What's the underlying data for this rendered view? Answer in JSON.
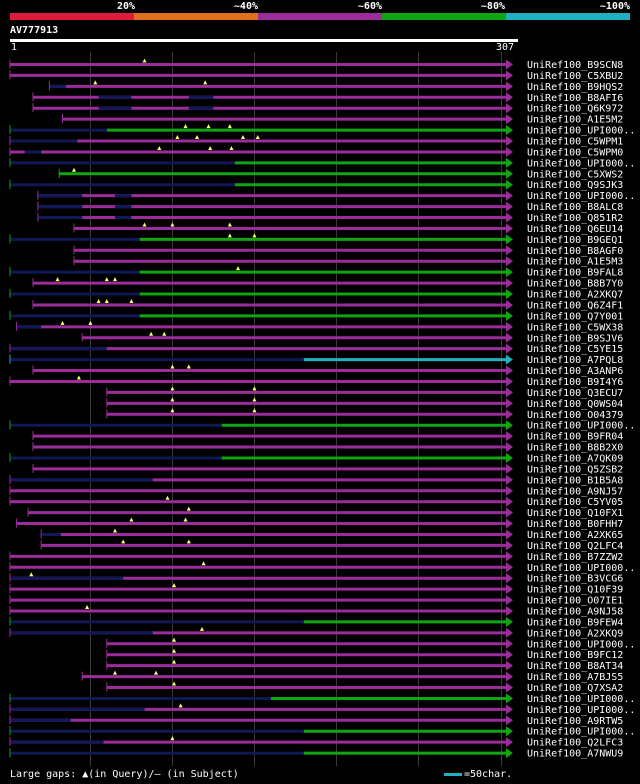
{
  "colors": {
    "magenta": "#9b2d9b",
    "green": "#11a511",
    "cyan": "#20b0c0",
    "navy": "#101858",
    "red": "#e01a3b",
    "orange": "#e07020",
    "grid": "#3a3a3a",
    "marker": "#ffff66"
  },
  "legend": {
    "bands": [
      {
        "label": "20%",
        "color": "#e01a3b"
      },
      {
        "label": "~40%",
        "color": "#e07020"
      },
      {
        "label": "~60%",
        "color": "#9b2d9b"
      },
      {
        "label": "~80%",
        "color": "#11a511"
      },
      {
        "label": "~100%",
        "color": "#20b0c0"
      }
    ]
  },
  "query": {
    "id": "AV777913",
    "start": "1",
    "end": "307",
    "length": 307
  },
  "hits": [
    {
      "name": "UniRef100_B9SCN8",
      "s": 1,
      "e": 307,
      "c": "magenta",
      "tri": [
        83
      ],
      "dash": []
    },
    {
      "name": "UniRef100_C5XBU2",
      "s": 1,
      "e": 307,
      "c": "magenta",
      "tri": [],
      "dash": []
    },
    {
      "name": "UniRef100_B9HQS2",
      "s": 25,
      "e": 307,
      "c": "magenta",
      "tri": [
        53,
        120
      ],
      "dash": [
        [
          25,
          35
        ]
      ]
    },
    {
      "name": "UniRef100_B8AFI6",
      "s": 15,
      "e": 307,
      "c": "magenta",
      "tri": [],
      "dash": [
        [
          55,
          75
        ],
        [
          110,
          125
        ]
      ]
    },
    {
      "name": "UniRef100_Q6K972",
      "s": 15,
      "e": 307,
      "c": "magenta",
      "tri": [],
      "dash": [
        [
          55,
          75
        ],
        [
          110,
          125
        ]
      ]
    },
    {
      "name": "UniRef100_A1E5M2",
      "s": 33,
      "e": 307,
      "c": "magenta",
      "tri": [],
      "dash": []
    },
    {
      "name": "UniRef100_UPI000..",
      "s": 1,
      "e": 307,
      "c": "green",
      "tri": [
        108,
        122,
        135
      ],
      "dash": [
        [
          1,
          60
        ]
      ],
      "split": 60
    },
    {
      "name": "UniRef100_C5WPM1",
      "s": 1,
      "e": 307,
      "c": "magenta",
      "tri": [
        103,
        115,
        143,
        152
      ],
      "dash": [
        [
          1,
          42
        ]
      ]
    },
    {
      "name": "UniRef100_C5WPM0",
      "s": 1,
      "e": 307,
      "c": "magenta",
      "tri": [
        123,
        136,
        92
      ],
      "dash": [
        [
          10,
          20
        ]
      ]
    },
    {
      "name": "UniRef100_UPI000..",
      "s": 1,
      "e": 307,
      "c": "green",
      "tri": [],
      "dash": [
        [
          1,
          138
        ]
      ],
      "split": 138
    },
    {
      "name": "UniRef100_C5XWS2",
      "s": 31,
      "e": 307,
      "c": "green",
      "tri": [
        40
      ],
      "dash": []
    },
    {
      "name": "UniRef100_Q9SJK3",
      "s": 1,
      "e": 307,
      "c": "green",
      "tri": [],
      "dash": [
        [
          1,
          138
        ]
      ],
      "split": 138
    },
    {
      "name": "UniRef100_UPI000..",
      "s": 18,
      "e": 307,
      "c": "magenta",
      "tri": [],
      "dash": [
        [
          18,
          45
        ],
        [
          65,
          75
        ]
      ]
    },
    {
      "name": "UniRef100_B8ALC8",
      "s": 18,
      "e": 307,
      "c": "magenta",
      "tri": [],
      "dash": [
        [
          18,
          45
        ],
        [
          65,
          75
        ]
      ]
    },
    {
      "name": "UniRef100_Q851R2",
      "s": 18,
      "e": 307,
      "c": "magenta",
      "tri": [],
      "dash": [
        [
          18,
          45
        ],
        [
          65,
          75
        ]
      ]
    },
    {
      "name": "UniRef100_Q6EU14",
      "s": 40,
      "e": 307,
      "c": "magenta",
      "tri": [
        83,
        100,
        135
      ],
      "dash": []
    },
    {
      "name": "UniRef100_B9GEQ1",
      "s": 1,
      "e": 307,
      "c": "green",
      "tri": [
        135,
        150
      ],
      "dash": [
        [
          1,
          80
        ]
      ],
      "split": 80
    },
    {
      "name": "UniRef100_B8AGF0",
      "s": 40,
      "e": 307,
      "c": "magenta",
      "tri": [],
      "dash": []
    },
    {
      "name": "UniRef100_A1E5M3",
      "s": 40,
      "e": 307,
      "c": "magenta",
      "tri": [],
      "dash": []
    },
    {
      "name": "UniRef100_B9FAL8",
      "s": 1,
      "e": 307,
      "c": "green",
      "tri": [
        140
      ],
      "dash": [
        [
          1,
          80
        ]
      ],
      "split": 80
    },
    {
      "name": "UniRef100_B8B7Y0",
      "s": 15,
      "e": 307,
      "c": "magenta",
      "tri": [
        30,
        60,
        65
      ],
      "dash": []
    },
    {
      "name": "UniRef100_A2XKQ7",
      "s": 1,
      "e": 307,
      "c": "green",
      "tri": [],
      "dash": [
        [
          1,
          80
        ]
      ],
      "split": 80
    },
    {
      "name": "UniRef100_Q6Z4F1",
      "s": 15,
      "e": 307,
      "c": "magenta",
      "tri": [
        55,
        75,
        60
      ],
      "dash": []
    },
    {
      "name": "UniRef100_Q7Y001",
      "s": 1,
      "e": 307,
      "c": "green",
      "tri": [],
      "dash": [
        [
          1,
          80
        ]
      ],
      "split": 80
    },
    {
      "name": "UniRef100_C5WX38",
      "s": 5,
      "e": 307,
      "c": "magenta",
      "tri": [
        33,
        50
      ],
      "dash": [
        [
          5,
          20
        ]
      ]
    },
    {
      "name": "UniRef100_B9SJV6",
      "s": 45,
      "e": 307,
      "c": "magenta",
      "tri": [
        87,
        95
      ],
      "dash": []
    },
    {
      "name": "UniRef100_C5YE15",
      "s": 1,
      "e": 307,
      "c": "magenta",
      "tri": [],
      "dash": [
        [
          1,
          60
        ]
      ]
    },
    {
      "name": "UniRef100_A7PQL8",
      "s": 1,
      "e": 307,
      "c": "cyan",
      "tri": [],
      "dash": [
        [
          1,
          180
        ]
      ],
      "split": 180
    },
    {
      "name": "UniRef100_A3ANP6",
      "s": 15,
      "e": 307,
      "c": "magenta",
      "tri": [
        100,
        110
      ],
      "dash": []
    },
    {
      "name": "UniRef100_B9I4Y6",
      "s": 1,
      "e": 307,
      "c": "magenta",
      "tri": [
        43
      ],
      "dash": []
    },
    {
      "name": "UniRef100_Q3ECU7",
      "s": 60,
      "e": 307,
      "c": "magenta",
      "tri": [
        100,
        150
      ],
      "dash": []
    },
    {
      "name": "UniRef100_Q0WS04",
      "s": 60,
      "e": 307,
      "c": "magenta",
      "tri": [
        100,
        150
      ],
      "dash": []
    },
    {
      "name": "UniRef100_O04379",
      "s": 60,
      "e": 307,
      "c": "magenta",
      "tri": [
        100,
        150
      ],
      "dash": []
    },
    {
      "name": "UniRef100_UPI000..",
      "s": 1,
      "e": 307,
      "c": "green",
      "tri": [],
      "dash": [
        [
          1,
          130
        ]
      ],
      "split": 130
    },
    {
      "name": "UniRef100_B9FR04",
      "s": 15,
      "e": 307,
      "c": "magenta",
      "tri": [],
      "dash": []
    },
    {
      "name": "UniRef100_B8B2X0",
      "s": 15,
      "e": 307,
      "c": "magenta",
      "tri": [],
      "dash": []
    },
    {
      "name": "UniRef100_A7QK09",
      "s": 1,
      "e": 307,
      "c": "green",
      "tri": [],
      "dash": [
        [
          1,
          130
        ]
      ],
      "split": 130
    },
    {
      "name": "UniRef100_Q5ZSB2",
      "s": 15,
      "e": 307,
      "c": "magenta",
      "tri": [],
      "dash": []
    },
    {
      "name": "UniRef100_B1B5A8",
      "s": 1,
      "e": 307,
      "c": "magenta",
      "tri": [],
      "dash": [
        [
          1,
          88
        ]
      ]
    },
    {
      "name": "UniRef100_A9NJ57",
      "s": 1,
      "e": 307,
      "c": "magenta",
      "tri": [],
      "dash": []
    },
    {
      "name": "UniRef100_C5YV05",
      "s": 1,
      "e": 307,
      "c": "magenta",
      "tri": [
        97
      ],
      "dash": []
    },
    {
      "name": "UniRef100_Q10FX1",
      "s": 12,
      "e": 307,
      "c": "magenta",
      "tri": [
        110
      ],
      "dash": []
    },
    {
      "name": "UniRef100_B0FHH7",
      "s": 5,
      "e": 307,
      "c": "magenta",
      "tri": [
        75,
        108
      ],
      "dash": []
    },
    {
      "name": "UniRef100_A2XK65",
      "s": 20,
      "e": 307,
      "c": "magenta",
      "tri": [
        65
      ],
      "dash": [
        [
          20,
          32
        ]
      ]
    },
    {
      "name": "UniRef100_Q2LFC4",
      "s": 20,
      "e": 307,
      "c": "magenta",
      "tri": [
        70,
        110
      ],
      "dash": []
    },
    {
      "name": "UniRef100_B7ZZW2",
      "s": 1,
      "e": 307,
      "c": "magenta",
      "tri": [],
      "dash": []
    },
    {
      "name": "UniRef100_UPI000..",
      "s": 1,
      "e": 307,
      "c": "magenta",
      "tri": [
        119
      ],
      "dash": []
    },
    {
      "name": "UniRef100_B3VCG6",
      "s": 1,
      "e": 307,
      "c": "magenta",
      "tri": [
        14
      ],
      "dash": [
        [
          1,
          70
        ]
      ]
    },
    {
      "name": "UniRef100_Q10F39",
      "s": 1,
      "e": 307,
      "c": "magenta",
      "tri": [
        101
      ],
      "dash": []
    },
    {
      "name": "UniRef100_O07IE1",
      "s": 1,
      "e": 307,
      "c": "magenta",
      "tri": [],
      "dash": []
    },
    {
      "name": "UniRef100_A9NJ58",
      "s": 1,
      "e": 307,
      "c": "magenta",
      "tri": [
        48
      ],
      "dash": []
    },
    {
      "name": "UniRef100_B9FEW4",
      "s": 1,
      "e": 307,
      "c": "green",
      "tri": [],
      "dash": [
        [
          1,
          180
        ]
      ],
      "split": 180
    },
    {
      "name": "UniRef100_A2XKQ9",
      "s": 1,
      "e": 307,
      "c": "magenta",
      "tri": [
        118
      ],
      "dash": [
        [
          1,
          88
        ]
      ]
    },
    {
      "name": "UniRef100_UPI000..",
      "s": 60,
      "e": 307,
      "c": "magenta",
      "tri": [
        101
      ],
      "dash": []
    },
    {
      "name": "UniRef100_B9FC12",
      "s": 60,
      "e": 307,
      "c": "magenta",
      "tri": [
        101
      ],
      "dash": []
    },
    {
      "name": "UniRef100_B8AT34",
      "s": 60,
      "e": 307,
      "c": "magenta",
      "tri": [
        101
      ],
      "dash": []
    },
    {
      "name": "UniRef100_A7BJS5",
      "s": 45,
      "e": 307,
      "c": "magenta",
      "tri": [
        65,
        90
      ],
      "dash": []
    },
    {
      "name": "UniRef100_Q7XSA2",
      "s": 60,
      "e": 307,
      "c": "magenta",
      "tri": [
        101
      ],
      "dash": []
    },
    {
      "name": "UniRef100_UPI000..",
      "s": 1,
      "e": 307,
      "c": "green",
      "tri": [],
      "dash": [
        [
          1,
          160
        ]
      ],
      "split": 160
    },
    {
      "name": "UniRef100_UPI000..",
      "s": 1,
      "e": 307,
      "c": "magenta",
      "tri": [
        105
      ],
      "dash": [
        [
          1,
          83
        ]
      ]
    },
    {
      "name": "UniRef100_A9RTW5",
      "s": 1,
      "e": 307,
      "c": "magenta",
      "tri": [],
      "dash": [
        [
          1,
          38
        ]
      ]
    },
    {
      "name": "UniRef100_UPI000..",
      "s": 1,
      "e": 307,
      "c": "green",
      "tri": [],
      "dash": [
        [
          1,
          180
        ]
      ],
      "split": 180
    },
    {
      "name": "UniRef100_Q2LFC3",
      "s": 1,
      "e": 307,
      "c": "magenta",
      "tri": [
        100
      ],
      "dash": [
        [
          1,
          58
        ]
      ]
    },
    {
      "name": "UniRef100_A7NWU9",
      "s": 1,
      "e": 307,
      "c": "green",
      "tri": [],
      "dash": [
        [
          1,
          180
        ]
      ],
      "split": 180
    }
  ],
  "footer": {
    "gaps_legend": "Large gaps: ▲(in Query)/– (in Subject)",
    "scale_label": "=50char."
  }
}
